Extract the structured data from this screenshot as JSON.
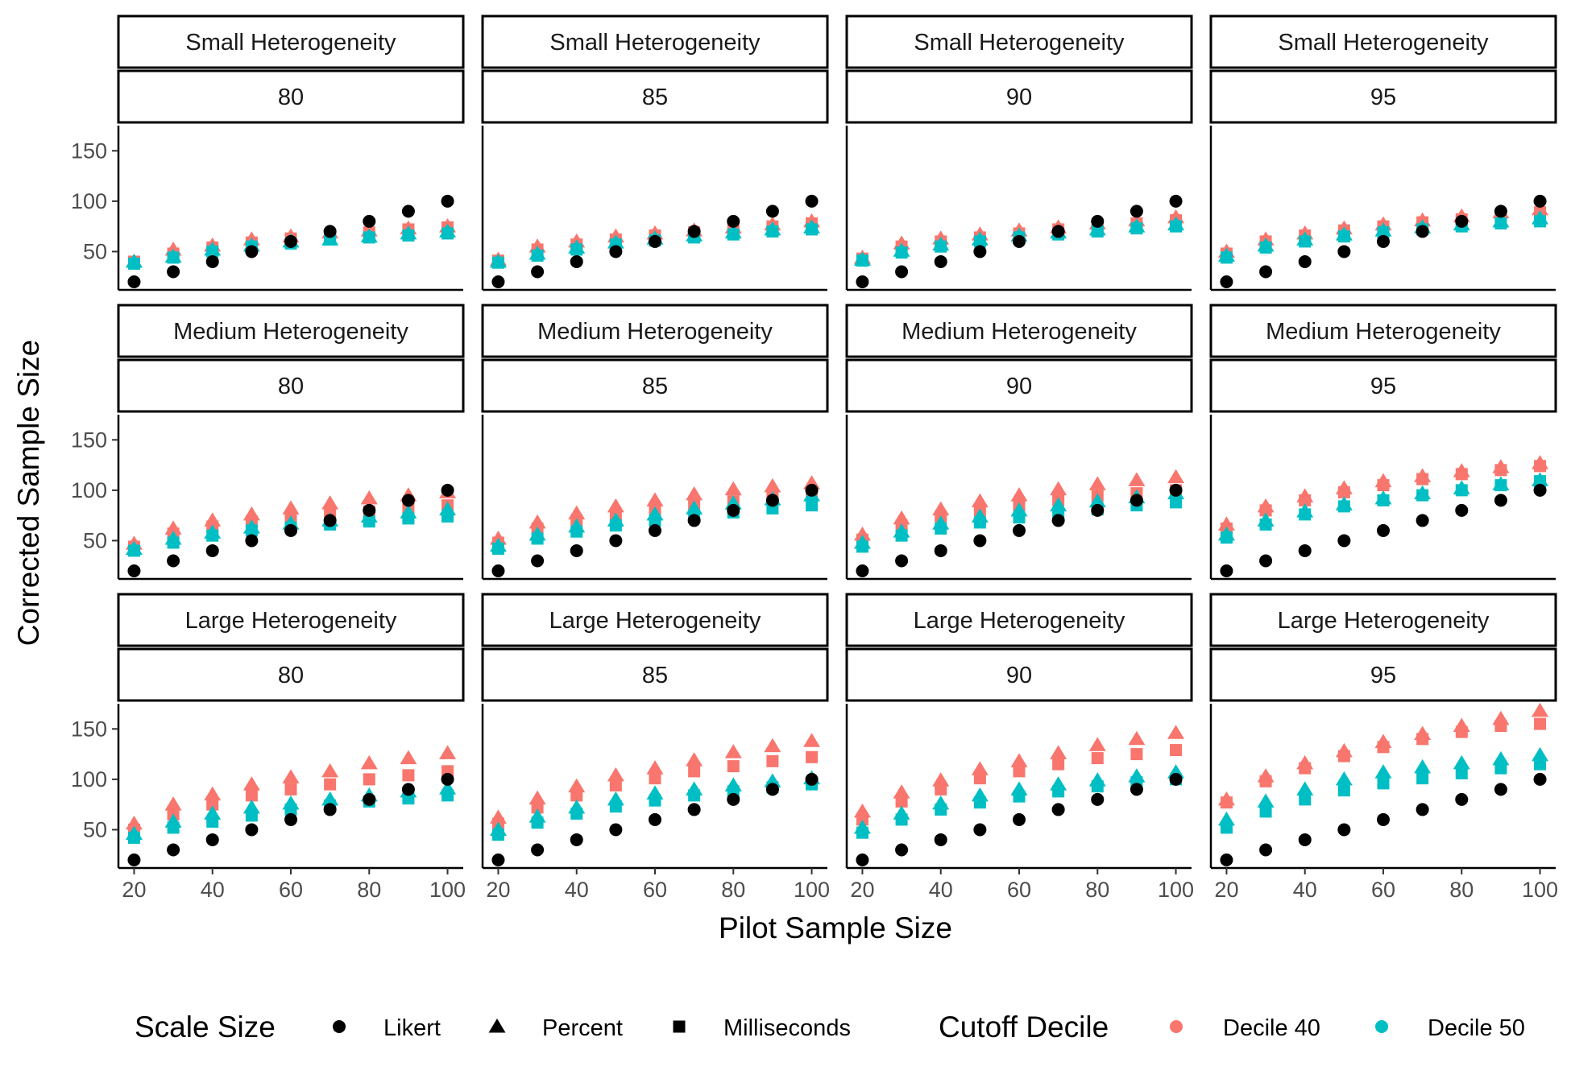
{
  "chart_data": {
    "type": "scatter",
    "facet_rows": [
      "Small Heterogeneity",
      "Medium Heterogeneity",
      "Large Heterogeneity"
    ],
    "facet_cols": [
      "80",
      "85",
      "90",
      "95"
    ],
    "xlabel": "Pilot Sample Size",
    "ylabel": "Corrected Sample Size",
    "x": [
      20,
      30,
      40,
      50,
      60,
      70,
      80,
      90,
      100
    ],
    "xticks": [
      "20",
      "40",
      "60",
      "80",
      "100"
    ],
    "yticks": [
      "50",
      "100",
      "150"
    ],
    "xlim": [
      16,
      104
    ],
    "ylim": [
      12,
      175
    ],
    "grid": false,
    "legend": {
      "position": "bottom",
      "shape_title": "Scale Size",
      "shape_items": [
        {
          "label": "Likert",
          "shape": "circle"
        },
        {
          "label": "Percent",
          "shape": "triangle"
        },
        {
          "label": "Milliseconds",
          "shape": "square"
        }
      ],
      "color_title": "Cutoff Decile",
      "color_items": [
        {
          "label": "Decile 40",
          "color": "#f8766d"
        },
        {
          "label": "Decile 50",
          "color": "#00bfc4"
        }
      ]
    },
    "colors": {
      "likert": "#000000",
      "decile40": "#f8766d",
      "decile50": "#00bfc4"
    },
    "likert": [
      20,
      30,
      40,
      50,
      60,
      70,
      80,
      90,
      100
    ],
    "panels": [
      {
        "row": "Small Heterogeneity",
        "col": "80",
        "percent_d40": [
          40,
          52,
          56,
          62,
          65,
          69,
          71,
          73,
          75
        ],
        "percent_d50": [
          40,
          45,
          52,
          56,
          60,
          62,
          65,
          68,
          70
        ],
        "ms_d40": [
          40,
          48,
          54,
          59,
          63,
          66,
          69,
          72,
          74
        ],
        "ms_d50": [
          38,
          44,
          50,
          55,
          58,
          62,
          64,
          66,
          68
        ]
      },
      {
        "row": "Small Heterogeneity",
        "col": "85",
        "percent_d40": [
          42,
          55,
          60,
          65,
          68,
          71,
          74,
          77,
          80
        ],
        "percent_d50": [
          40,
          48,
          54,
          59,
          63,
          66,
          69,
          72,
          74
        ],
        "ms_d40": [
          41,
          52,
          57,
          62,
          66,
          69,
          72,
          75,
          78
        ],
        "ms_d50": [
          39,
          46,
          52,
          57,
          61,
          64,
          67,
          70,
          72
        ]
      },
      {
        "row": "Small Heterogeneity",
        "col": "90",
        "percent_d40": [
          44,
          58,
          63,
          67,
          71,
          74,
          78,
          81,
          84
        ],
        "percent_d50": [
          42,
          51,
          57,
          62,
          66,
          69,
          72,
          75,
          77
        ],
        "ms_d40": [
          43,
          55,
          60,
          64,
          68,
          72,
          75,
          78,
          81
        ],
        "ms_d50": [
          41,
          49,
          55,
          60,
          64,
          67,
          70,
          73,
          75
        ]
      },
      {
        "row": "Small Heterogeneity",
        "col": "95",
        "percent_d40": [
          50,
          62,
          68,
          73,
          77,
          81,
          85,
          89,
          92
        ],
        "percent_d50": [
          46,
          56,
          62,
          67,
          71,
          74,
          77,
          80,
          83
        ],
        "ms_d40": [
          48,
          60,
          66,
          71,
          75,
          79,
          82,
          86,
          89
        ],
        "ms_d50": [
          44,
          54,
          60,
          65,
          69,
          72,
          75,
          78,
          80
        ]
      },
      {
        "row": "Medium Heterogeneity",
        "col": "80",
        "percent_d40": [
          47,
          62,
          70,
          76,
          82,
          87,
          92,
          95,
          98
        ],
        "percent_d50": [
          42,
          52,
          58,
          63,
          67,
          70,
          74,
          78,
          81
        ],
        "ms_d40": [
          44,
          57,
          64,
          69,
          73,
          76,
          79,
          82,
          85
        ],
        "ms_d50": [
          40,
          48,
          55,
          60,
          63,
          66,
          69,
          72,
          74
        ]
      },
      {
        "row": "Medium Heterogeneity",
        "col": "85",
        "percent_d40": [
          52,
          68,
          77,
          84,
          90,
          96,
          101,
          104,
          107
        ],
        "percent_d50": [
          45,
          56,
          64,
          70,
          76,
          82,
          87,
          91,
          95
        ],
        "ms_d40": [
          48,
          62,
          70,
          76,
          81,
          85,
          89,
          93,
          96
        ],
        "ms_d50": [
          42,
          52,
          59,
          65,
          70,
          74,
          78,
          82,
          85
        ]
      },
      {
        "row": "Medium Heterogeneity",
        "col": "90",
        "percent_d40": [
          56,
          72,
          81,
          89,
          95,
          101,
          106,
          110,
          113
        ],
        "percent_d50": [
          48,
          59,
          67,
          74,
          80,
          85,
          89,
          93,
          97
        ],
        "ms_d40": [
          51,
          65,
          74,
          80,
          85,
          90,
          94,
          97,
          100
        ],
        "ms_d50": [
          44,
          55,
          62,
          68,
          73,
          77,
          81,
          85,
          88
        ]
      },
      {
        "row": "Medium Heterogeneity",
        "col": "95",
        "percent_d40": [
          66,
          84,
          94,
          102,
          109,
          114,
          119,
          123,
          127
        ],
        "percent_d50": [
          56,
          70,
          79,
          86,
          92,
          97,
          102,
          106,
          110
        ],
        "ms_d40": [
          62,
          80,
          90,
          98,
          105,
          111,
          116,
          120,
          124
        ],
        "ms_d50": [
          53,
          66,
          76,
          84,
          90,
          95,
          100,
          105,
          109
        ]
      },
      {
        "row": "Large Heterogeneity",
        "col": "80",
        "percent_d40": [
          56,
          75,
          85,
          95,
          102,
          108,
          116,
          121,
          126
        ],
        "percent_d50": [
          46,
          58,
          66,
          72,
          76,
          80,
          84,
          88,
          91
        ],
        "ms_d40": [
          50,
          65,
          75,
          84,
          90,
          95,
          100,
          104,
          108
        ],
        "ms_d50": [
          42,
          52,
          58,
          64,
          70,
          74,
          78,
          81,
          84
        ]
      },
      {
        "row": "Large Heterogeneity",
        "col": "85",
        "percent_d40": [
          62,
          81,
          93,
          104,
          111,
          119,
          127,
          133,
          138
        ],
        "percent_d50": [
          50,
          63,
          72,
          80,
          86,
          90,
          94,
          98,
          101
        ],
        "ms_d40": [
          56,
          72,
          84,
          94,
          101,
          108,
          113,
          118,
          122
        ],
        "ms_d50": [
          45,
          57,
          66,
          73,
          79,
          84,
          88,
          92,
          95
        ]
      },
      {
        "row": "Large Heterogeneity",
        "col": "90",
        "percent_d40": [
          68,
          87,
          99,
          110,
          118,
          126,
          134,
          140,
          146
        ],
        "percent_d50": [
          52,
          66,
          76,
          84,
          90,
          95,
          99,
          103,
          107
        ],
        "ms_d40": [
          60,
          78,
          90,
          101,
          108,
          115,
          121,
          125,
          129
        ],
        "ms_d50": [
          47,
          60,
          70,
          77,
          83,
          88,
          93,
          97,
          100
        ]
      },
      {
        "row": "Large Heterogeneity",
        "col": "95",
        "percent_d40": [
          80,
          103,
          116,
          128,
          137,
          145,
          153,
          160,
          168
        ],
        "percent_d50": [
          60,
          78,
          90,
          100,
          107,
          112,
          116,
          120,
          124
        ],
        "ms_d40": [
          77,
          98,
          111,
          123,
          132,
          140,
          147,
          153,
          155
        ],
        "ms_d50": [
          52,
          68,
          80,
          89,
          96,
          101,
          106,
          111,
          115
        ]
      }
    ]
  }
}
